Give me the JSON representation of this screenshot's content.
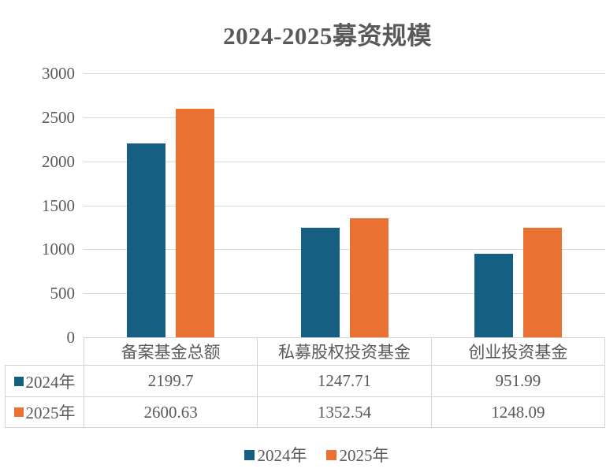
{
  "chart_data": {
    "type": "bar",
    "title": "2024-2025募资规模",
    "categories": [
      "备案基金总额",
      "私募股权投资基金",
      "创业投资基金"
    ],
    "series": [
      {
        "name": "2024年",
        "color": "#156082",
        "values": [
          2199.7,
          1247.71,
          951.99
        ]
      },
      {
        "name": "2025年",
        "color": "#E97132",
        "values": [
          2600.63,
          1352.54,
          1248.09
        ]
      }
    ],
    "y_axis": {
      "min": 0,
      "max": 3000,
      "step": 500,
      "ticks": [
        "0",
        "500",
        "1000",
        "1500",
        "2000",
        "2500",
        "3000"
      ]
    },
    "grid": true,
    "legend_position": "bottom",
    "data_table_shown": true,
    "colors": {
      "text": "#595959",
      "gridline": "#d9d9d9",
      "table_border": "#d4d4d4",
      "background": "#ffffff"
    }
  }
}
